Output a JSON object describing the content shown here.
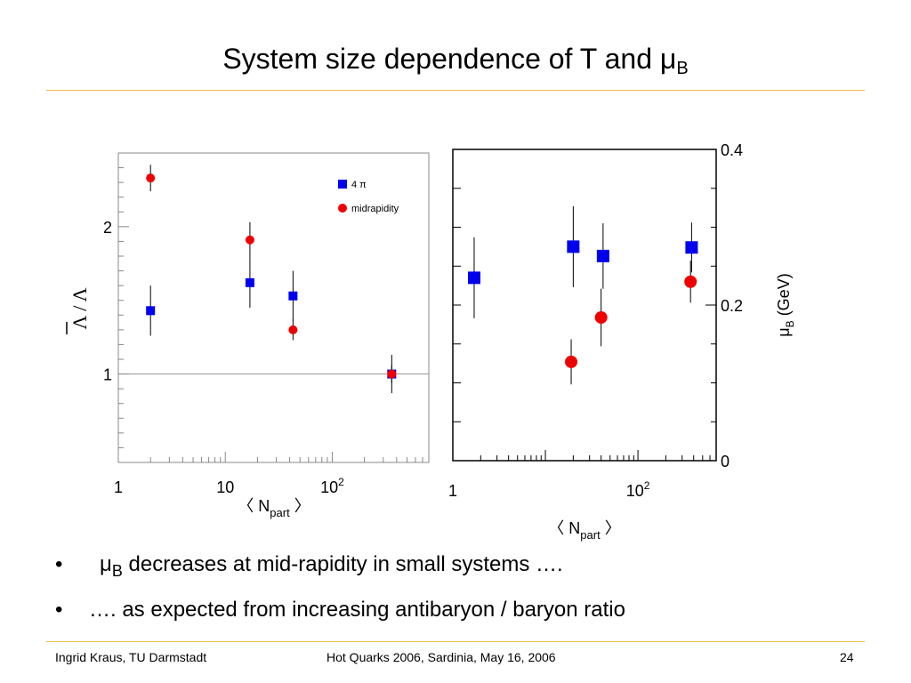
{
  "slide": {
    "title_main": "System size dependence of T and ",
    "title_mu": "μ",
    "title_sub": "B",
    "bullets": [
      {
        "symbol": "•",
        "pre": "μ",
        "sub": "B",
        "text": " decreases at mid-rapidity in small systems …."
      },
      {
        "symbol": "•",
        "pre": "",
        "sub": "",
        "text": "…. as expected from increasing antibaryon / baryon ratio"
      }
    ],
    "footer": {
      "left": "Ingrid Kraus, TU Darmstadt",
      "center": "Hot Quarks 2006, Sardinia, May 16, 2006",
      "right": "24"
    },
    "colors": {
      "rule": "#e8c14a",
      "blue": "#0000ee",
      "red": "#ee0000"
    }
  },
  "chart_data": [
    {
      "type": "scatter",
      "x_scale": "log",
      "xlim": [
        1,
        800
      ],
      "ylim": [
        0.4,
        2.5
      ],
      "x_ticks": [
        {
          "v": 1,
          "label": "1"
        },
        {
          "v": 10,
          "label": "10"
        },
        {
          "v": 100,
          "label": "10",
          "sup": "2"
        }
      ],
      "y_ticks": [
        {
          "v": 1,
          "label": "1"
        },
        {
          "v": 2,
          "label": "2"
        }
      ],
      "xlabel": "〈 N",
      "xlabel_sub": "part",
      "xlabel_end": " 〉",
      "ylabel": "Λ / Λ",
      "reference_line": 1,
      "legend": [
        {
          "label": "4 π",
          "marker": "square"
        },
        {
          "label": "midrapidity",
          "marker": "circle"
        }
      ],
      "series": [
        {
          "name": "4 π",
          "marker": "square",
          "color": "#0000ee",
          "points": [
            {
              "x": 2,
              "y": 1.43,
              "err": 0.17
            },
            {
              "x": 17,
              "y": 1.62,
              "err": 0.17
            },
            {
              "x": 43,
              "y": 1.53,
              "err": 0.17
            },
            {
              "x": 360,
              "y": 1.0,
              "err": 0.13
            }
          ]
        },
        {
          "name": "midrapidity",
          "marker": "circle",
          "color": "#ee0000",
          "points": [
            {
              "x": 2,
              "y": 2.33,
              "err": 0.09
            },
            {
              "x": 17,
              "y": 1.91,
              "err": 0.12
            },
            {
              "x": 43,
              "y": 1.3,
              "err": 0.07
            },
            {
              "x": 360,
              "y": 1.0,
              "err": 0.06
            }
          ]
        }
      ]
    },
    {
      "type": "scatter",
      "x_scale": "log",
      "xlim": [
        1,
        700
      ],
      "ylim": [
        0,
        0.4
      ],
      "x_ticks": [
        {
          "v": 1,
          "label": "1"
        },
        {
          "v": 100,
          "label": "10",
          "sup": "2"
        }
      ],
      "y_ticks": [
        {
          "v": 0,
          "label": "0"
        },
        {
          "v": 0.2,
          "label": "0.2"
        },
        {
          "v": 0.4,
          "label": "0.4"
        }
      ],
      "xlabel": "〈 N",
      "xlabel_sub": "part",
      "xlabel_end": " 〉",
      "ylabel": "μ",
      "ylabel_sub": "B",
      "ylabel_end": " (GeV)",
      "series": [
        {
          "marker": "square",
          "color": "#0000ee",
          "points": [
            {
              "x": 1.7,
              "y": 0.235,
              "err": 0.052
            },
            {
              "x": 20,
              "y": 0.275,
              "err": 0.052
            },
            {
              "x": 42,
              "y": 0.263,
              "err": 0.042
            },
            {
              "x": 380,
              "y": 0.274,
              "err": 0.032
            }
          ]
        },
        {
          "marker": "circle",
          "color": "#ee0000",
          "points": [
            {
              "x": 19,
              "y": 0.127,
              "err": 0.029
            },
            {
              "x": 40,
              "y": 0.184,
              "err": 0.037
            },
            {
              "x": 370,
              "y": 0.23,
              "err": 0.027
            }
          ]
        }
      ]
    }
  ]
}
